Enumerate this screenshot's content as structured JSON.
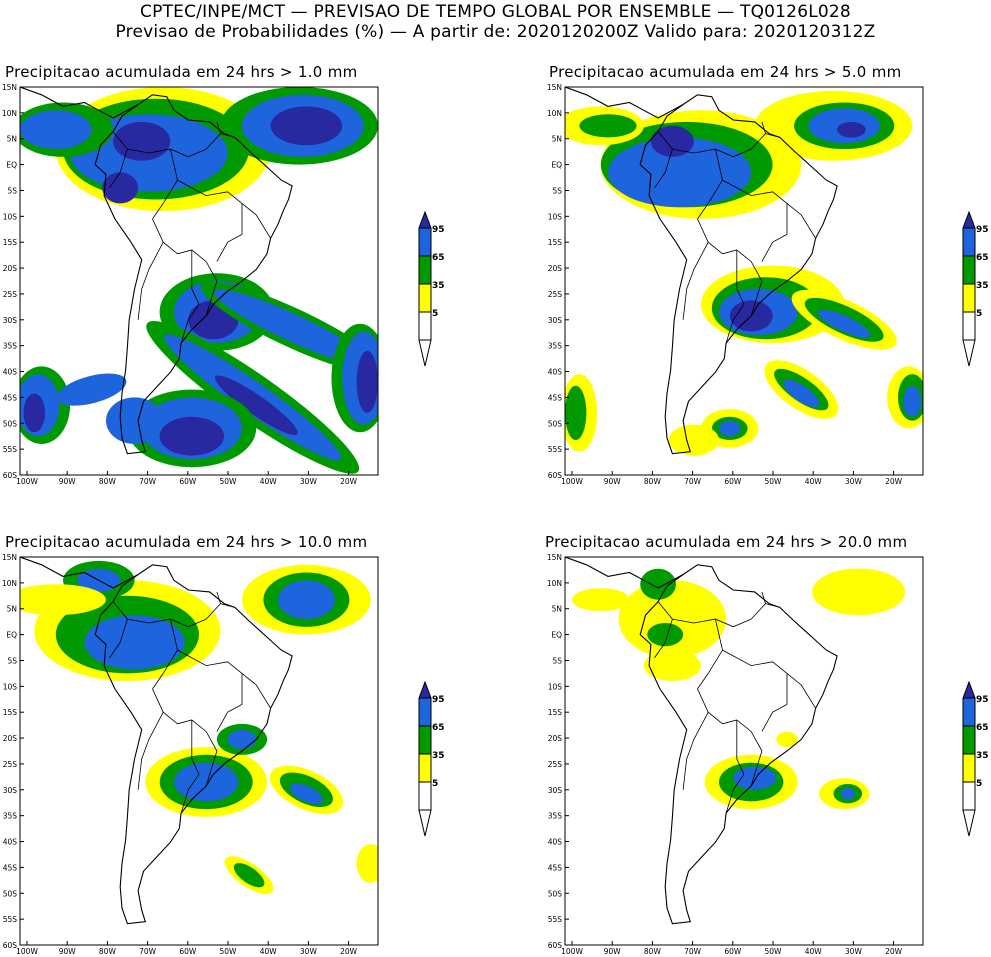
{
  "header": {
    "line1": "CPTEC/INPE/MCT — PREVISAO DE TEMPO GLOBAL POR ENSEMBLE — TQ0126L028",
    "line2": "Previsao de Probabilidades (%) —  A partir de: 2020120200Z  Valido para: 2020120312Z"
  },
  "panels": [
    {
      "title": "Precipitacao acumulada em 24 hrs > 1.0 mm"
    },
    {
      "title": "Precipitacao acumulada em 24 hrs > 5.0 mm"
    },
    {
      "title": "Precipitacao acumulada em 24 hrs > 10.0 mm"
    },
    {
      "title": "Precipitacao acumulada em 24 hrs > 20.0 mm"
    }
  ],
  "axes": {
    "lat_labels": [
      "15N",
      "10N",
      "5N",
      "EQ",
      "5S",
      "10S",
      "15S",
      "20S",
      "25S",
      "30S",
      "35S",
      "40S",
      "45S",
      "50S",
      "55S",
      "60S"
    ],
    "lon_labels": [
      "100W",
      "90W",
      "80W",
      "70W",
      "60W",
      "50W",
      "40W",
      "30W",
      "20W"
    ]
  },
  "legend": {
    "labels": [
      "95",
      "65",
      "35",
      "5"
    ],
    "colors": {
      "yellow": "#ffff00",
      "green": "#009a00",
      "blue": "#1e64dc",
      "darkblue": "#2828a0"
    }
  }
}
